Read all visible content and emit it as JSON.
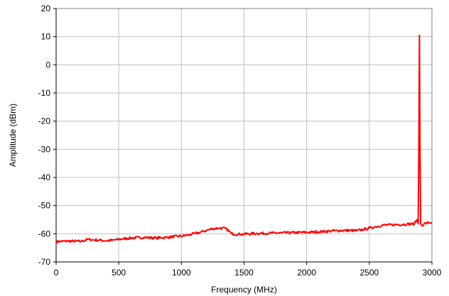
{
  "chart_data": {
    "type": "line",
    "title": "",
    "xlabel": "Frequency (MHz)",
    "ylabel": "Amplitude (dBm)",
    "xlim": [
      0,
      3000
    ],
    "ylim": [
      -70,
      20
    ],
    "x_ticks": [
      0,
      500,
      1000,
      1500,
      2000,
      2500,
      3000
    ],
    "y_ticks": [
      20,
      10,
      0,
      -10,
      -20,
      -30,
      -40,
      -50,
      -60,
      -70
    ],
    "grid": true,
    "legend": "none",
    "series": [
      {
        "color": "#ff0000",
        "x": [
          0,
          100,
          200,
          250,
          300,
          350,
          400,
          450,
          500,
          600,
          700,
          800,
          900,
          1000,
          1050,
          1100,
          1150,
          1200,
          1250,
          1300,
          1350,
          1380,
          1400,
          1450,
          1500,
          1600,
          1700,
          1800,
          1900,
          2000,
          2100,
          2200,
          2300,
          2400,
          2450,
          2500,
          2550,
          2600,
          2700,
          2800,
          2860,
          2880,
          2890,
          2895,
          2900,
          2905,
          2910,
          2920,
          2950,
          3000
        ],
        "y": [
          -62.8,
          -62.6,
          -62.7,
          -62.0,
          -62.2,
          -62.3,
          -62.5,
          -62.3,
          -62.0,
          -61.5,
          -61.3,
          -61.5,
          -61.2,
          -60.8,
          -60.5,
          -60.0,
          -59.5,
          -58.8,
          -58.2,
          -58.0,
          -58.1,
          -59.0,
          -60.0,
          -60.2,
          -60.1,
          -59.9,
          -59.8,
          -59.7,
          -59.6,
          -59.5,
          -59.3,
          -59.0,
          -58.8,
          -58.9,
          -58.5,
          -58.0,
          -57.5,
          -57.0,
          -56.8,
          -56.6,
          -56.5,
          -55.0,
          -56.5,
          -30.0,
          10.5,
          -30.0,
          -56.5,
          -57.0,
          -56.2,
          -56.0
        ]
      }
    ]
  }
}
